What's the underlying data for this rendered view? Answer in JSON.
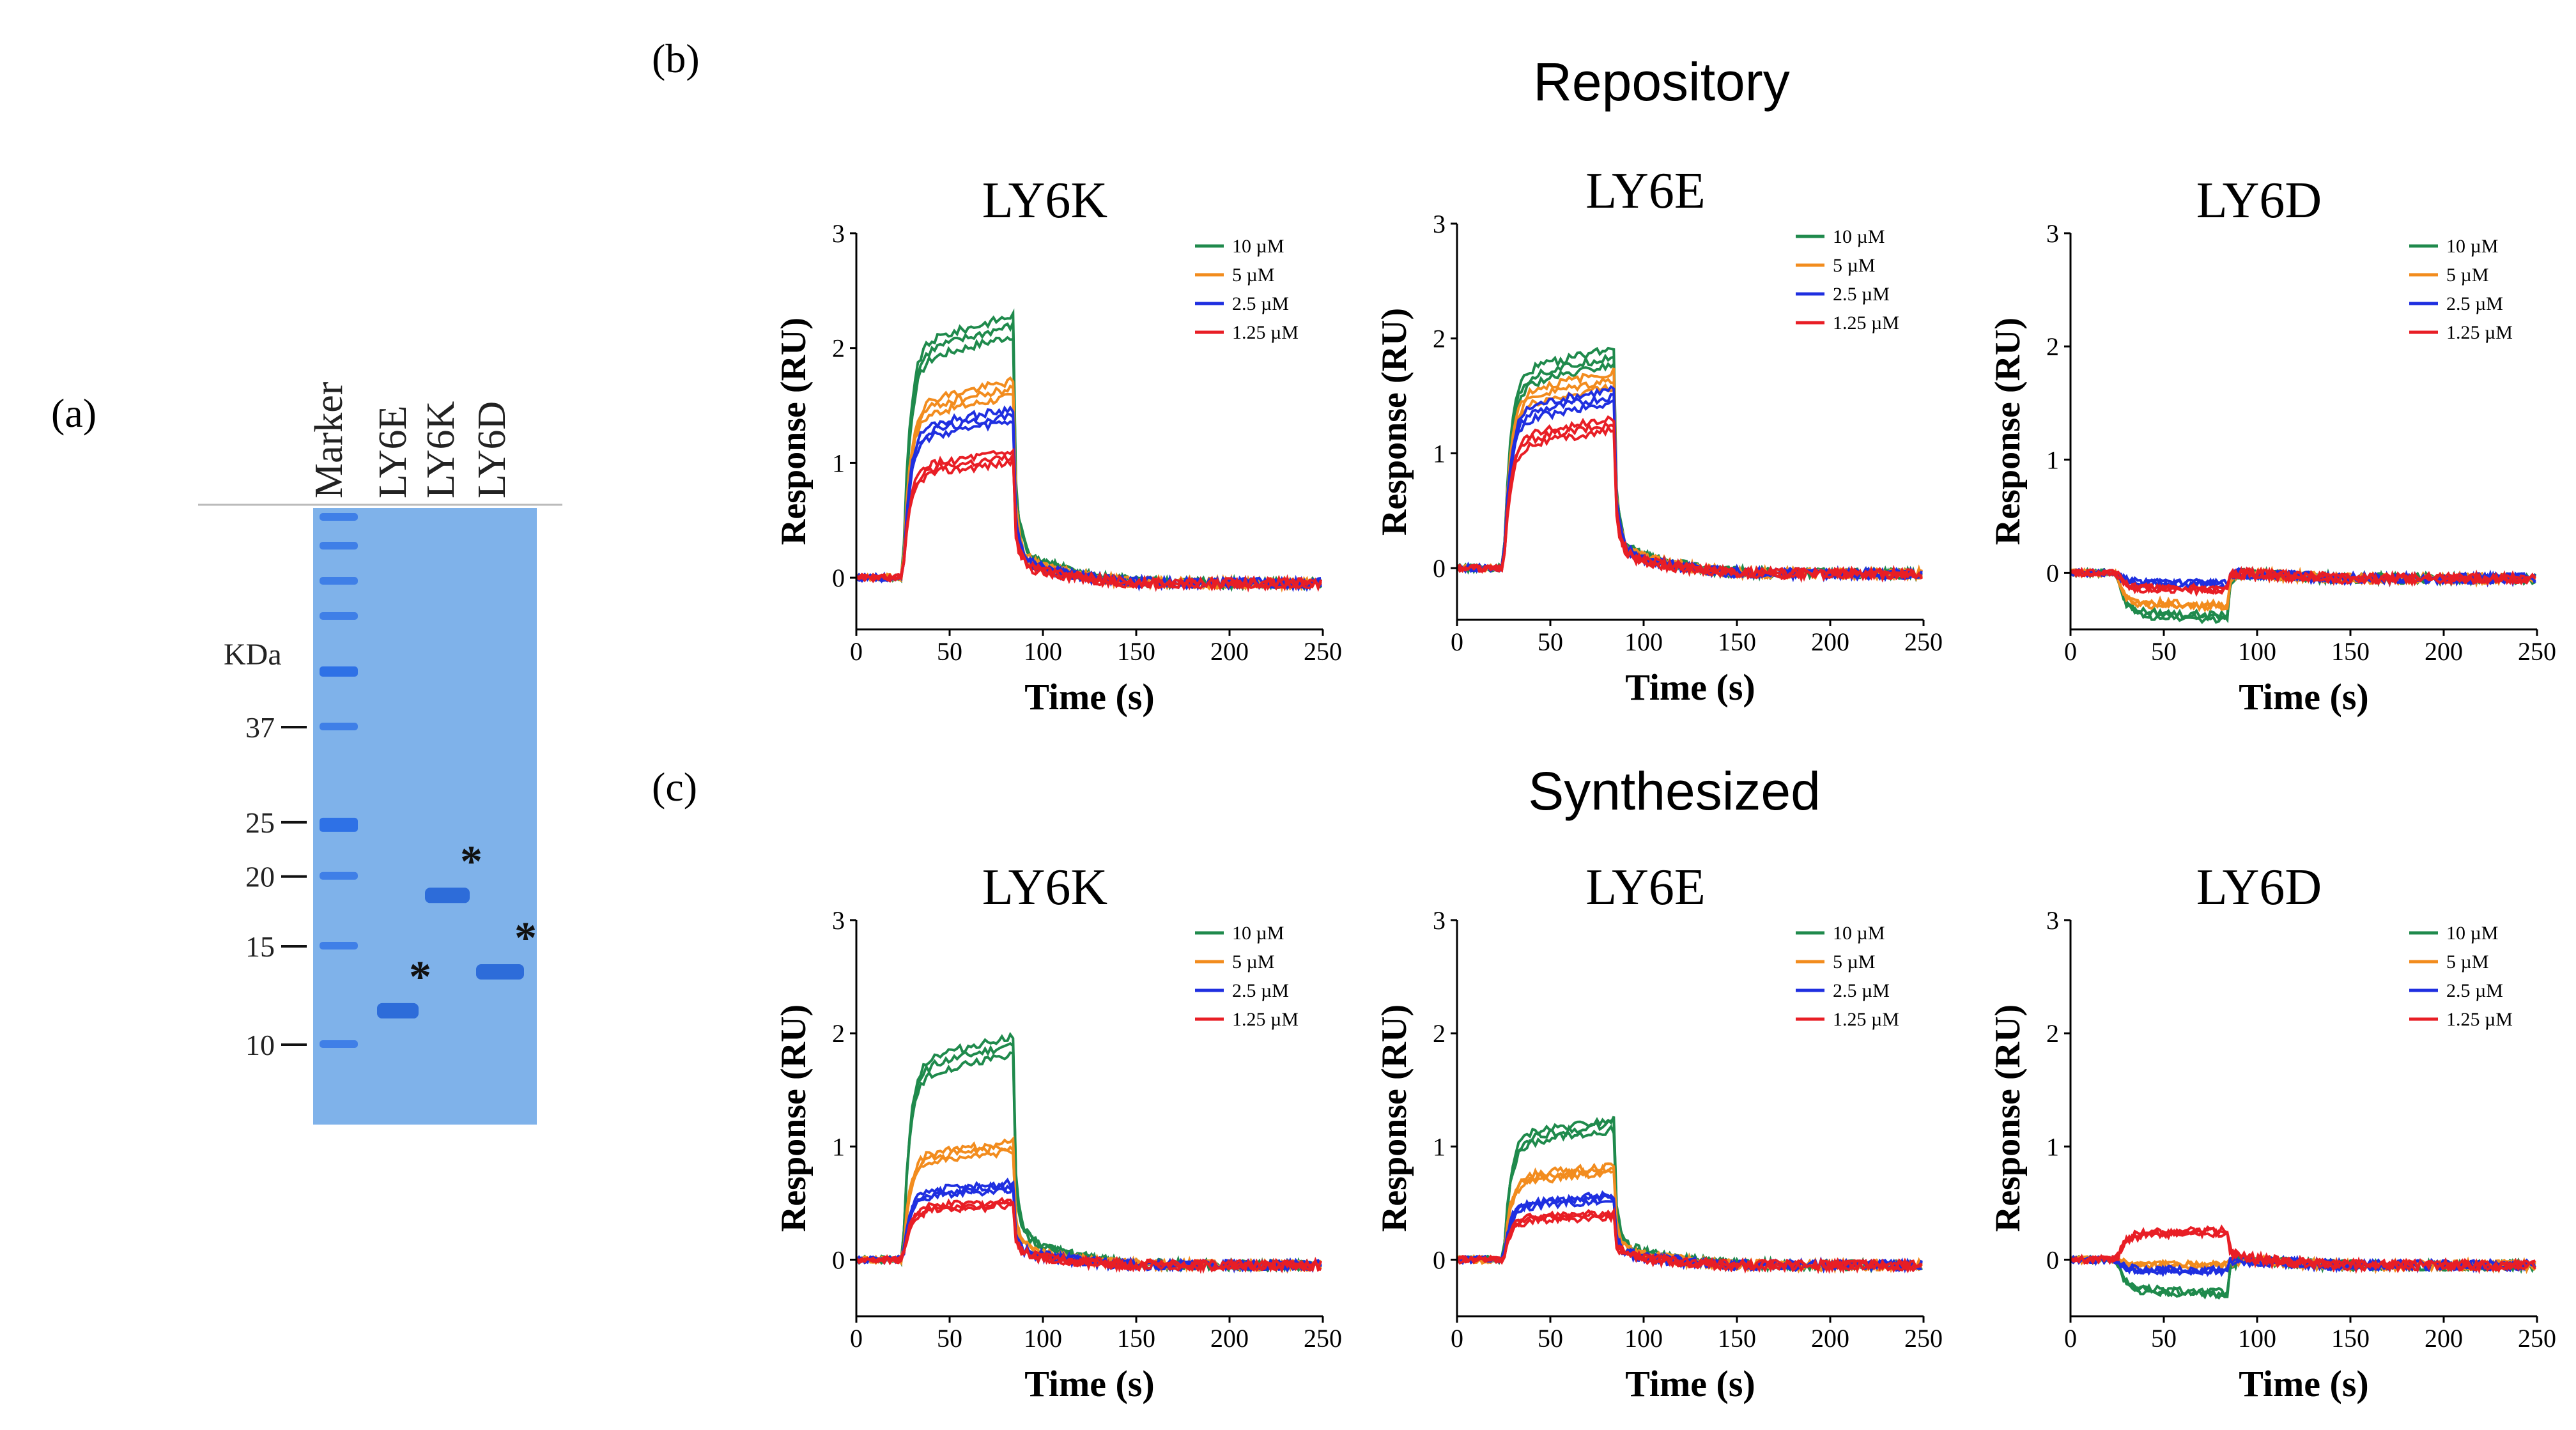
{
  "panel_labels": {
    "a": "(a)",
    "b": "(b)",
    "c": "(c)"
  },
  "section_titles": {
    "repository": "Repository",
    "synthesized": "Synthesized"
  },
  "gel": {
    "lane_labels": [
      "Marker",
      "LY6E",
      "LY6K",
      "LY6D"
    ],
    "unit_label": "KDa",
    "mw_markers": [
      {
        "label": "37",
        "kda": 37
      },
      {
        "label": "25",
        "kda": 25
      },
      {
        "label": "20",
        "kda": 20
      },
      {
        "label": "15",
        "kda": 15
      },
      {
        "label": "10",
        "kda": 10
      }
    ],
    "band_marker": "*",
    "colors": {
      "gel": "#7aaee8",
      "band": "#1f5fd6",
      "marker_band": "#2a6ee6"
    }
  },
  "chart_data": [
    {
      "type": "line",
      "section": "Repository",
      "title": "LY6K",
      "xlabel": "Time (s)",
      "ylabel": "Response (RU)",
      "xlim": [
        0,
        250
      ],
      "ylim": [
        -0.45,
        3
      ],
      "xticks": [
        0,
        50,
        100,
        150,
        200,
        250
      ],
      "yticks": [
        0,
        1,
        2,
        3
      ],
      "legend": [
        "10 µM",
        "5 µM",
        "2.5 µM",
        "1.25 µM"
      ],
      "series": [
        {
          "name": "10 µM",
          "color": "#1f8a4c",
          "plateau": 2.2
        },
        {
          "name": "5 µM",
          "color": "#f28c1e",
          "plateau": 1.65
        },
        {
          "name": "2.5 µM",
          "color": "#1f2fe0",
          "plateau": 1.42
        },
        {
          "name": "1.25 µM",
          "color": "#e81e25",
          "plateau": 1.05
        }
      ],
      "events": {
        "injection_start": 25,
        "injection_end": 85
      }
    },
    {
      "type": "line",
      "section": "Repository",
      "title": "LY6E",
      "xlabel": "Time (s)",
      "ylabel": "Response (RU)",
      "xlim": [
        0,
        250
      ],
      "ylim": [
        -0.45,
        3
      ],
      "xticks": [
        0,
        50,
        100,
        150,
        200,
        250
      ],
      "yticks": [
        0,
        1,
        2,
        3
      ],
      "legend": [
        "10 µM",
        "5 µM",
        "2.5 µM",
        "1.25 µM"
      ],
      "series": [
        {
          "name": "10 µM",
          "color": "#1f8a4c",
          "plateau": 1.85
        },
        {
          "name": "5 µM",
          "color": "#f28c1e",
          "plateau": 1.65
        },
        {
          "name": "2.5 µM",
          "color": "#1f2fe0",
          "plateau": 1.5
        },
        {
          "name": "1.25 µM",
          "color": "#e81e25",
          "plateau": 1.25
        }
      ],
      "events": {
        "injection_start": 25,
        "injection_end": 85
      }
    },
    {
      "type": "line",
      "section": "Repository",
      "title": "LY6D",
      "xlabel": "Time (s)",
      "ylabel": "Response (RU)",
      "xlim": [
        0,
        250
      ],
      "ylim": [
        -0.5,
        3
      ],
      "xticks": [
        0,
        50,
        100,
        150,
        200,
        250
      ],
      "yticks": [
        0,
        1,
        2,
        3
      ],
      "legend": [
        "10 µM",
        "5 µM",
        "2.5 µM",
        "1.25 µM"
      ],
      "series": [
        {
          "name": "10 µM",
          "color": "#1f8a4c",
          "plateau": -0.4
        },
        {
          "name": "5 µM",
          "color": "#f28c1e",
          "plateau": -0.3
        },
        {
          "name": "2.5 µM",
          "color": "#1f2fe0",
          "plateau": -0.1
        },
        {
          "name": "1.25 µM",
          "color": "#e81e25",
          "plateau": -0.15
        }
      ],
      "events": {
        "injection_start": 25,
        "injection_end": 85
      }
    },
    {
      "type": "line",
      "section": "Synthesized",
      "title": "LY6K",
      "xlabel": "Time (s)",
      "ylabel": "Response (RU)",
      "xlim": [
        0,
        250
      ],
      "ylim": [
        -0.5,
        3
      ],
      "xticks": [
        0,
        50,
        100,
        150,
        200,
        250
      ],
      "yticks": [
        0,
        1,
        2,
        3
      ],
      "legend": [
        "10 µM",
        "5 µM",
        "2.5 µM",
        "1.25 µM"
      ],
      "series": [
        {
          "name": "10 µM",
          "color": "#1f8a4c",
          "plateau": 1.9
        },
        {
          "name": "5 µM",
          "color": "#f28c1e",
          "plateau": 1.0
        },
        {
          "name": "2.5 µM",
          "color": "#1f2fe0",
          "plateau": 0.65
        },
        {
          "name": "1.25 µM",
          "color": "#e81e25",
          "plateau": 0.5
        }
      ],
      "events": {
        "injection_start": 25,
        "injection_end": 85
      }
    },
    {
      "type": "line",
      "section": "Synthesized",
      "title": "LY6E",
      "xlabel": "Time (s)",
      "ylabel": "Response (RU)",
      "xlim": [
        0,
        250
      ],
      "ylim": [
        -0.5,
        3
      ],
      "xticks": [
        0,
        50,
        100,
        150,
        200,
        250
      ],
      "yticks": [
        0,
        1,
        2,
        3
      ],
      "legend": [
        "10 µM",
        "5 µM",
        "2.5 µM",
        "1.25 µM"
      ],
      "series": [
        {
          "name": "10 µM",
          "color": "#1f8a4c",
          "plateau": 1.2
        },
        {
          "name": "5 µM",
          "color": "#f28c1e",
          "plateau": 0.8
        },
        {
          "name": "2.5 µM",
          "color": "#1f2fe0",
          "plateau": 0.55
        },
        {
          "name": "1.25 µM",
          "color": "#e81e25",
          "plateau": 0.4
        }
      ],
      "events": {
        "injection_start": 25,
        "injection_end": 85
      }
    },
    {
      "type": "line",
      "section": "Synthesized",
      "title": "LY6D",
      "xlabel": "Time (s)",
      "ylabel": "Response (RU)",
      "xlim": [
        0,
        250
      ],
      "ylim": [
        -0.5,
        3
      ],
      "xticks": [
        0,
        50,
        100,
        150,
        200,
        250
      ],
      "yticks": [
        0,
        1,
        2,
        3
      ],
      "legend": [
        "10 µM",
        "5 µM",
        "2.5 µM",
        "1.25 µM"
      ],
      "series": [
        {
          "name": "10 µM",
          "color": "#1f8a4c",
          "plateau": -0.3
        },
        {
          "name": "5 µM",
          "color": "#f28c1e",
          "plateau": -0.05
        },
        {
          "name": "2.5 µM",
          "color": "#1f2fe0",
          "plateau": -0.1
        },
        {
          "name": "1.25 µM",
          "color": "#e81e25",
          "plateau": 0.25
        }
      ],
      "events": {
        "injection_start": 25,
        "injection_end": 85
      }
    }
  ]
}
